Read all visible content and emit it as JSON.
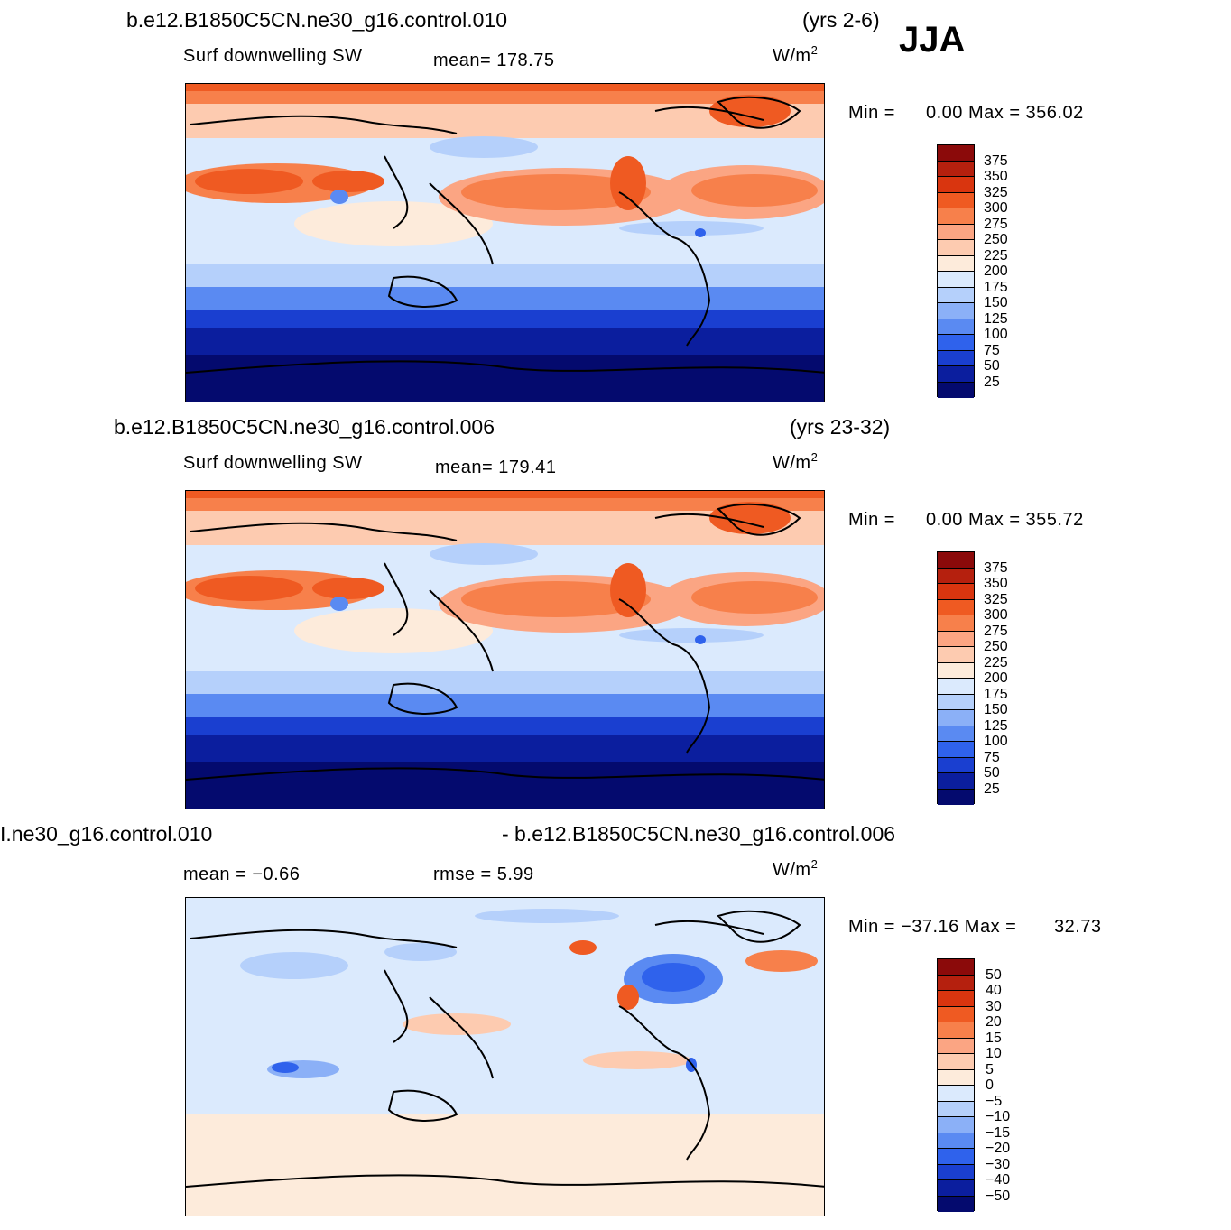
{
  "season": "JJA",
  "panels": [
    {
      "case_title": "b.e12.B1850C5CN.ne30_g16.control.010",
      "years": "(yrs 2-6)",
      "variable": "Surf downwelling SW",
      "stat1": "mean=  178.75",
      "units": "W/m",
      "unit_sup": "2",
      "min_label": "Min =",
      "min_max": "0.00 Max = 356.02"
    },
    {
      "case_title": "b.e12.B1850C5CN.ne30_g16.control.006",
      "years": "(yrs 23-32)",
      "variable": "Surf downwelling SW",
      "stat1": "mean=  179.41",
      "units": "W/m",
      "unit_sup": "2",
      "min_label": "Min =",
      "min_max": "0.00 Max = 355.72"
    },
    {
      "case_left": "І.ne30_g16.control.010",
      "case_right": "- b.e12.B1850C5CN.ne30_g16.control.006",
      "stat1": "mean =   −0.66",
      "stat2": "rmse =    5.99",
      "units": "W/m",
      "unit_sup": "2",
      "min_label": "Min = −37.16 Max =",
      "min_max": "32.73"
    }
  ],
  "chart_data": [
    {
      "type": "heatmap",
      "title": "Surf downwelling SW",
      "subtitle": "b.e12.B1850C5CN.ne30_g16.control.010 (yrs 2-6)",
      "units": "W/m2",
      "mean": 178.75,
      "min": 0.0,
      "max": 356.02,
      "levels": [
        25,
        50,
        75,
        100,
        125,
        150,
        175,
        200,
        225,
        250,
        275,
        300,
        325,
        350,
        375
      ],
      "tick_labels": [
        "375",
        "350",
        "325",
        "300",
        "275",
        "250",
        "225",
        "200",
        "175",
        "150",
        "125",
        "100",
        "75",
        "50",
        "25"
      ],
      "colors": [
        "#8b0a0a",
        "#b5200e",
        "#d9350f",
        "#ef5a22",
        "#f7804b",
        "#fba583",
        "#fdcbb0",
        "#fdebdb",
        "#dbeafd",
        "#b5d0fb",
        "#8bb0f7",
        "#5a8af2",
        "#2f62ec",
        "#1a3fd0",
        "#0b1e9e",
        "#040a6e"
      ],
      "tick_colors_top_to_bottom": true
    },
    {
      "type": "heatmap",
      "title": "Surf downwelling SW",
      "subtitle": "b.e12.B1850C5CN.ne30_g16.control.006 (yrs 23-32)",
      "units": "W/m2",
      "mean": 179.41,
      "min": 0.0,
      "max": 355.72,
      "levels": [
        25,
        50,
        75,
        100,
        125,
        150,
        175,
        200,
        225,
        250,
        275,
        300,
        325,
        350,
        375
      ],
      "tick_labels": [
        "375",
        "350",
        "325",
        "300",
        "275",
        "250",
        "225",
        "200",
        "175",
        "150",
        "125",
        "100",
        "75",
        "50",
        "25"
      ],
      "colors": [
        "#8b0a0a",
        "#b5200e",
        "#d9350f",
        "#ef5a22",
        "#f7804b",
        "#fba583",
        "#fdcbb0",
        "#fdebdb",
        "#dbeafd",
        "#b5d0fb",
        "#8bb0f7",
        "#5a8af2",
        "#2f62ec",
        "#1a3fd0",
        "#0b1e9e",
        "#040a6e"
      ]
    },
    {
      "type": "heatmap",
      "title": "difference control.010 - control.006",
      "units": "W/m2",
      "mean": -0.66,
      "rmse": 5.99,
      "min": -37.16,
      "max": 32.73,
      "levels": [
        -50,
        -40,
        -30,
        -20,
        -15,
        -10,
        -5,
        0,
        5,
        10,
        15,
        20,
        30,
        40,
        50
      ],
      "tick_labels": [
        "50",
        "40",
        "30",
        "20",
        "15",
        "10",
        "5",
        "0",
        "−5",
        "−10",
        "−15",
        "−20",
        "−30",
        "−40",
        "−50"
      ],
      "colors": [
        "#8b0a0a",
        "#b5200e",
        "#d9350f",
        "#ef5a22",
        "#f7804b",
        "#fba583",
        "#fdcbb0",
        "#fdebdb",
        "#dbeafd",
        "#b5d0fb",
        "#8bb0f7",
        "#5a8af2",
        "#2f62ec",
        "#1a3fd0",
        "#0b1e9e",
        "#040a6e"
      ]
    }
  ]
}
